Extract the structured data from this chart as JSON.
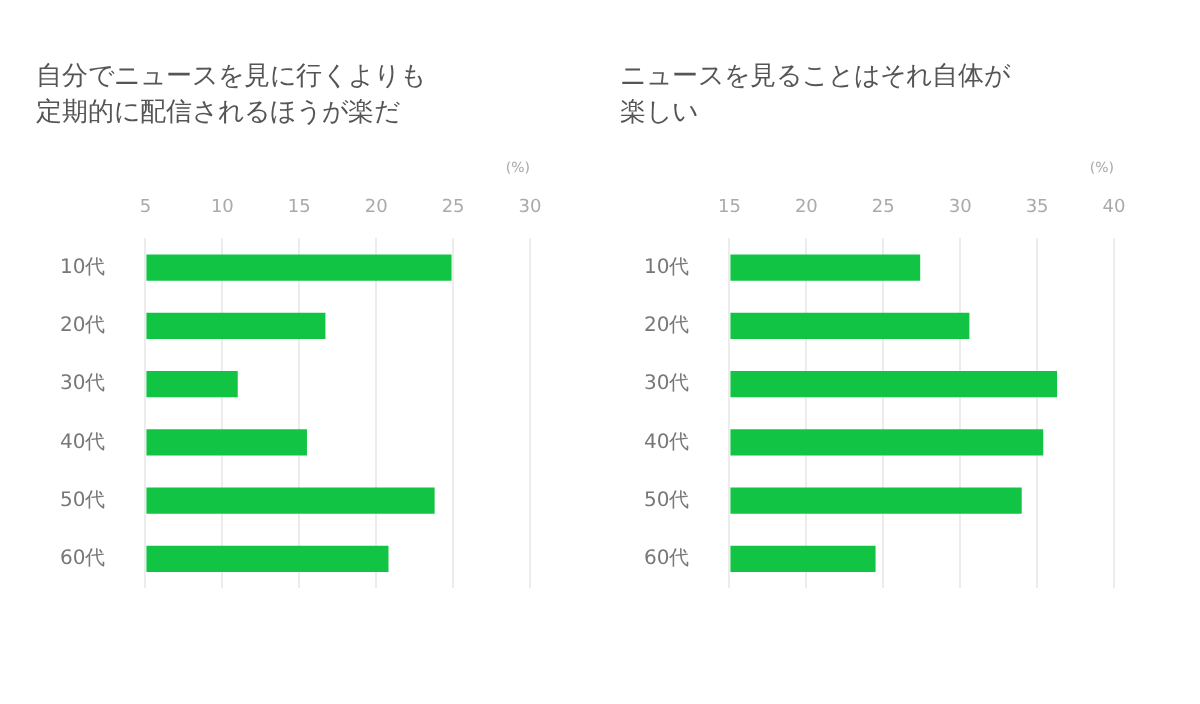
{
  "chart_data": [
    {
      "type": "bar",
      "orientation": "horizontal",
      "title": "自分でニュースを見に行くよりも定期的に配信されるほうが楽だ",
      "xlabel": "(%)",
      "categories": [
        "10代",
        "20代",
        "30代",
        "40代",
        "50代",
        "60代"
      ],
      "values": [
        24.9,
        16.7,
        11.0,
        15.5,
        23.8,
        20.8
      ],
      "color": "#12c444",
      "xlim": [
        5,
        30
      ],
      "xticks": [
        5,
        10,
        15,
        20,
        25,
        30
      ],
      "grid": "x"
    },
    {
      "type": "bar",
      "orientation": "horizontal",
      "title": "ニュースを見ることはそれ自体が楽しい",
      "xlabel": "(%)",
      "categories": [
        "10代",
        "20代",
        "30代",
        "40代",
        "50代",
        "60代"
      ],
      "values": [
        27.4,
        30.6,
        36.3,
        35.4,
        34.0,
        24.5
      ],
      "color": "#12c444",
      "xlim": [
        15,
        40
      ],
      "xticks": [
        15,
        20,
        25,
        30,
        35,
        40
      ],
      "grid": "x"
    }
  ]
}
